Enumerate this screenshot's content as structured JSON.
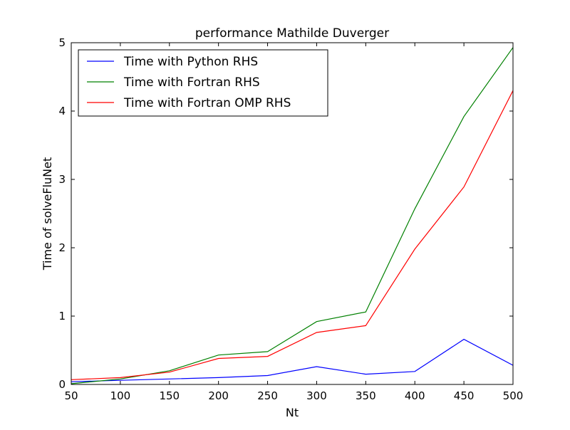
{
  "chart_data": {
    "type": "line",
    "title": "performance Mathilde Duverger",
    "xlabel": "Nt",
    "ylabel": "Time of solveFluNet",
    "xlim": [
      50,
      500
    ],
    "ylim": [
      0,
      5
    ],
    "xticks": [
      50,
      100,
      150,
      200,
      250,
      300,
      350,
      400,
      450,
      500
    ],
    "yticks": [
      0,
      1,
      2,
      3,
      4,
      5
    ],
    "grid": false,
    "legend_position": "top-left",
    "x": [
      50,
      100,
      150,
      200,
      250,
      300,
      350,
      400,
      450,
      500
    ],
    "series": [
      {
        "name": "Time with Python RHS",
        "color": "#0000ff",
        "values": [
          0.04,
          0.06,
          0.08,
          0.1,
          0.13,
          0.26,
          0.15,
          0.19,
          0.66,
          0.28
        ]
      },
      {
        "name": "Time with Fortran RHS",
        "color": "#008000",
        "values": [
          0.01,
          0.08,
          0.2,
          0.43,
          0.48,
          0.92,
          1.06,
          2.57,
          3.92,
          4.93
        ]
      },
      {
        "name": "Time with Fortran OMP RHS",
        "color": "#ff0000",
        "values": [
          0.07,
          0.1,
          0.18,
          0.38,
          0.41,
          0.76,
          0.86,
          1.98,
          2.89,
          4.3
        ]
      }
    ]
  }
}
